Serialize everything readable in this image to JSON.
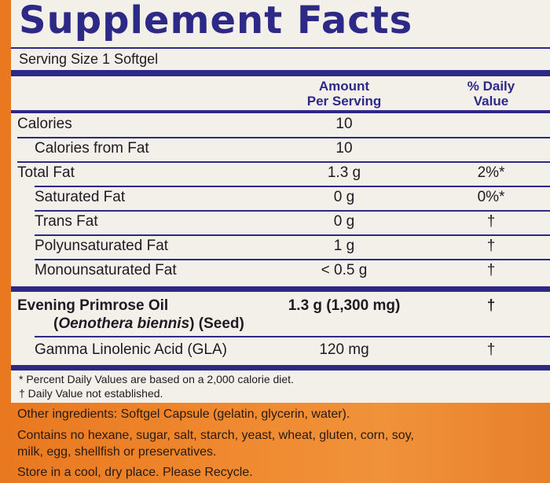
{
  "title": "Supplement Facts",
  "serving_size": "Serving Size 1 Softgel",
  "headers": {
    "amount_line1": "Amount",
    "amount_line2": "Per Serving",
    "dv_line1": "% Daily",
    "dv_line2": "Value"
  },
  "rows": [
    {
      "label": "Calories",
      "amount": "10",
      "dv": ""
    },
    {
      "label": "Calories from Fat",
      "amount": "10",
      "dv": ""
    },
    {
      "label": "Total Fat",
      "amount": "1.3 g",
      "dv": "2%*"
    },
    {
      "label": "Saturated Fat",
      "amount": "0 g",
      "dv": "0%*"
    },
    {
      "label": "Trans Fat",
      "amount": "0 g",
      "dv": "†"
    },
    {
      "label": "Polyunsaturated Fat",
      "amount": "1 g",
      "dv": "†"
    },
    {
      "label": "Monounsaturated Fat",
      "amount": "< 0.5 g",
      "dv": "†"
    }
  ],
  "epo": {
    "label": "Evening Primrose Oil",
    "amount": "1.3 g (1,300 mg)",
    "dv": "†",
    "open_paren": "(",
    "latin": "Oenothera biennis",
    "seed": ") (Seed)"
  },
  "gla": {
    "label": "Gamma Linolenic Acid (GLA)",
    "amount": "120 mg",
    "dv": "†"
  },
  "footnotes": [
    "* Percent Daily Values are based on a 2,000 calorie diet.",
    "† Daily Value not established."
  ],
  "other": [
    "Other ingredients: Softgel Capsule (gelatin, glycerin, water).",
    "Contains no hexane, sugar, salt, starch, yeast, wheat, gluten, corn, soy,",
    "milk, egg, shellfish or preservatives.",
    "Store in a cool, dry place.  Please Recycle."
  ],
  "colors": {
    "accent": "#2c2a86",
    "panel": "#f3f0ea",
    "background": "#ee8630"
  }
}
